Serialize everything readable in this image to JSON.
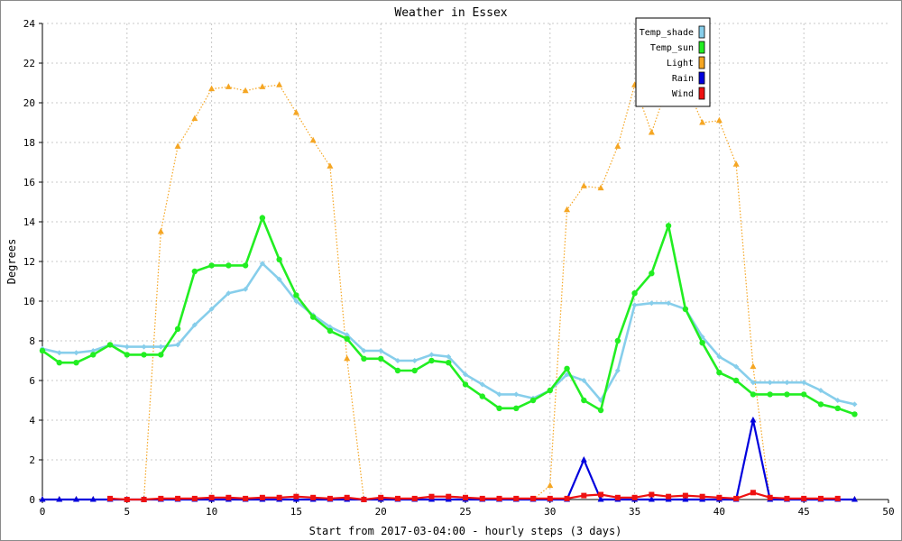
{
  "chart_data": {
    "type": "line",
    "title": "Weather in Essex",
    "xlabel": "Start from 2017-03-04:00 - hourly steps (3 days)",
    "ylabel": "Degrees",
    "xlim": [
      0,
      50
    ],
    "ylim": [
      0,
      24
    ],
    "xticks": [
      0,
      5,
      10,
      15,
      20,
      25,
      30,
      35,
      40,
      45,
      50
    ],
    "yticks": [
      0,
      2,
      4,
      6,
      8,
      10,
      12,
      14,
      16,
      18,
      20,
      22,
      24
    ],
    "grid": true,
    "legend_position": "top-right",
    "x": [
      0,
      1,
      2,
      3,
      4,
      5,
      6,
      7,
      8,
      9,
      10,
      11,
      12,
      13,
      14,
      15,
      16,
      17,
      18,
      19,
      20,
      21,
      22,
      23,
      24,
      25,
      26,
      27,
      28,
      29,
      30,
      31,
      32,
      33,
      34,
      35,
      36,
      37,
      38,
      39,
      40,
      41,
      42,
      43,
      44,
      45,
      46,
      47,
      48
    ],
    "series": [
      {
        "name": "Temp_shade",
        "color": "#87ceeb",
        "marker": "diamond",
        "style": "solid",
        "values": [
          7.6,
          7.4,
          7.4,
          7.5,
          7.8,
          7.7,
          7.7,
          7.7,
          7.8,
          8.8,
          9.6,
          10.4,
          10.6,
          11.9,
          11.1,
          10.0,
          9.3,
          8.7,
          8.3,
          7.5,
          7.5,
          7.0,
          7.0,
          7.3,
          7.2,
          6.3,
          5.8,
          5.3,
          5.3,
          5.1,
          5.5,
          6.3,
          6.0,
          5.0,
          6.5,
          9.8,
          9.9,
          9.9,
          9.6,
          8.2,
          7.2,
          6.7,
          5.9,
          5.9,
          5.9,
          5.9,
          5.5,
          5.0,
          4.8
        ]
      },
      {
        "name": "Temp_sun",
        "color": "#22ee22",
        "marker": "circle",
        "style": "solid",
        "values": [
          7.5,
          6.9,
          6.9,
          7.3,
          7.8,
          7.3,
          7.3,
          7.3,
          8.6,
          11.5,
          11.8,
          11.8,
          11.8,
          14.2,
          12.1,
          10.3,
          9.2,
          8.5,
          8.1,
          7.1,
          7.1,
          6.5,
          6.5,
          7.0,
          6.9,
          5.8,
          5.2,
          4.6,
          4.6,
          5.0,
          5.5,
          6.6,
          5.0,
          4.5,
          8.0,
          10.4,
          11.4,
          13.8,
          9.6,
          7.9,
          6.4,
          6.0,
          5.3,
          5.3,
          5.3,
          5.3,
          4.8,
          4.6,
          4.3
        ]
      },
      {
        "name": "Light",
        "color": "#f5a623",
        "marker": "triangle",
        "style": "dotted",
        "values": [
          0,
          0,
          0,
          0,
          0,
          0,
          0,
          13.5,
          17.8,
          19.2,
          20.7,
          20.8,
          20.6,
          20.8,
          20.9,
          19.5,
          18.1,
          16.8,
          7.1,
          0,
          0,
          0,
          0,
          0,
          0,
          0,
          0,
          0,
          0,
          0,
          0.7,
          14.6,
          15.8,
          15.7,
          17.8,
          20.9,
          18.5,
          21.0,
          21.0,
          19.0,
          19.1,
          16.9,
          6.7,
          0,
          0,
          0,
          0,
          0,
          0
        ]
      },
      {
        "name": "Rain",
        "color": "#0000dd",
        "marker": "triangle",
        "style": "solid",
        "values": [
          0,
          0,
          0,
          0,
          0,
          0,
          0,
          0,
          0,
          0,
          0,
          0,
          0,
          0,
          0,
          0,
          0,
          0,
          0,
          0,
          0,
          0,
          0,
          0,
          0,
          0,
          0,
          0,
          0,
          0,
          0,
          0,
          2.0,
          0,
          0,
          0,
          0,
          0,
          0,
          0,
          0,
          0,
          4.0,
          0,
          0,
          0,
          0,
          0,
          0
        ]
      },
      {
        "name": "Wind",
        "color": "#ee1111",
        "marker": "bar",
        "style": "solid",
        "values": [
          null,
          null,
          null,
          null,
          0.05,
          0.0,
          0.0,
          0.05,
          0.05,
          0.05,
          0.1,
          0.1,
          0.05,
          0.1,
          0.1,
          0.15,
          0.1,
          0.05,
          0.1,
          0.0,
          0.1,
          0.05,
          0.05,
          0.15,
          0.15,
          0.1,
          0.05,
          0.05,
          0.05,
          0.05,
          0.05,
          0.05,
          0.2,
          0.25,
          0.1,
          0.1,
          0.25,
          0.15,
          0.2,
          0.15,
          0.1,
          0.05,
          0.35,
          0.1,
          0.05,
          0.05,
          0.05,
          0.05,
          null
        ]
      }
    ]
  }
}
